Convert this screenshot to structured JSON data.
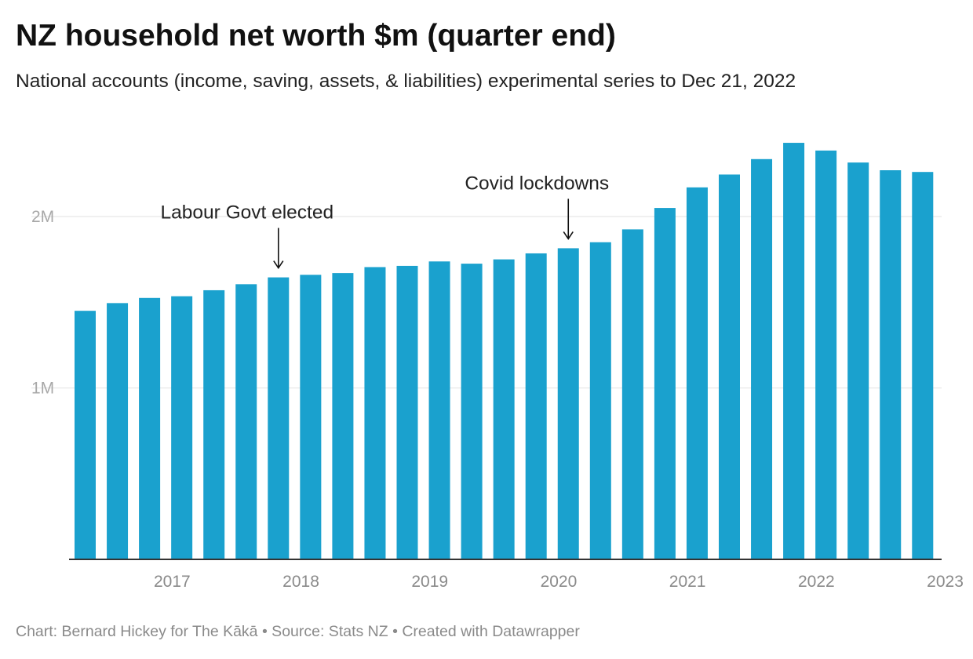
{
  "header": {
    "title": "NZ household net worth $m (quarter end)",
    "subtitle": "National accounts (income, saving, assets, & liabilities) experimental series to Dec 21, 2022"
  },
  "footer": {
    "credit": "Chart: Bernard Hickey for The Kākā • Source: Stats NZ • Created with Datawrapper"
  },
  "colors": {
    "bar": "#1aa1ce",
    "grid": "#e2e2e2",
    "axis": "#333333"
  },
  "chart_data": {
    "type": "bar",
    "title": "NZ household net worth $m (quarter end)",
    "subtitle": "National accounts (income, saving, assets, & liabilities) experimental series to Dec 21, 2022",
    "categories": [
      "2016-06",
      "2016-09",
      "2016-12",
      "2017-03",
      "2017-06",
      "2017-09",
      "2017-12",
      "2018-03",
      "2018-06",
      "2018-09",
      "2018-12",
      "2019-03",
      "2019-06",
      "2019-09",
      "2019-12",
      "2020-03",
      "2020-06",
      "2020-09",
      "2020-12",
      "2021-03",
      "2021-06",
      "2021-09",
      "2021-12",
      "2022-03",
      "2022-06",
      "2022-09",
      "2022-12"
    ],
    "values": [
      1450000,
      1495000,
      1525000,
      1535000,
      1570000,
      1605000,
      1645000,
      1660000,
      1670000,
      1705000,
      1712000,
      1738000,
      1725000,
      1750000,
      1785000,
      1815000,
      1850000,
      1925000,
      2050000,
      2170000,
      2245000,
      2335000,
      2430000,
      2385000,
      2315000,
      2270000,
      2260000
    ],
    "ylim": [
      0,
      2500000
    ],
    "y_ticks": [
      {
        "value": 1000000,
        "label": "1M"
      },
      {
        "value": 2000000,
        "label": "2M"
      }
    ],
    "x_ticks": [
      {
        "index": 2.7,
        "label": "2017"
      },
      {
        "index": 6.7,
        "label": "2018"
      },
      {
        "index": 10.7,
        "label": "2019"
      },
      {
        "index": 14.7,
        "label": "2020"
      },
      {
        "index": 18.7,
        "label": "2021"
      },
      {
        "index": 22.7,
        "label": "2022"
      },
      {
        "index": 26.7,
        "label": "2023"
      }
    ],
    "annotations": [
      {
        "text": "Labour Govt elected",
        "bar_index": 6
      },
      {
        "text": "Covid lockdowns",
        "bar_index": 15
      }
    ],
    "xlabel": "",
    "ylabel": "",
    "grid": true,
    "legend": "none"
  }
}
